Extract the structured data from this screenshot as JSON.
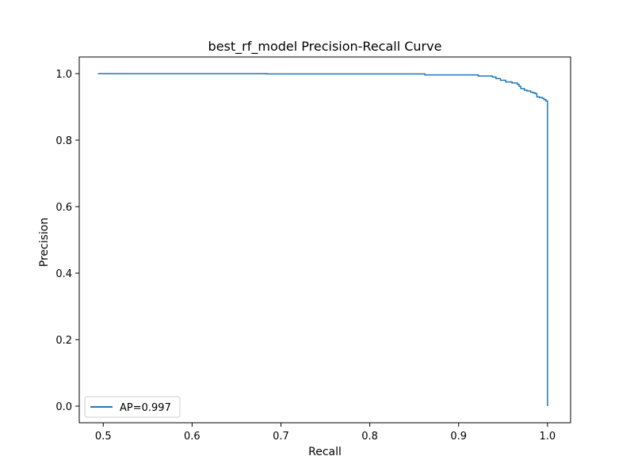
{
  "chart_data": {
    "type": "line",
    "title": "best_rf_model Precision-Recall Curve",
    "xlabel": "Recall",
    "ylabel": "Precision",
    "xlim": [
      0.473,
      1.026
    ],
    "ylim": [
      -0.05,
      1.05
    ],
    "xticks": [
      0.5,
      0.6,
      0.7,
      0.8,
      0.9,
      1.0
    ],
    "xtick_labels": [
      "0.5",
      "0.6",
      "0.7",
      "0.8",
      "0.9",
      "1.0"
    ],
    "yticks": [
      0.0,
      0.2,
      0.4,
      0.6,
      0.8,
      1.0
    ],
    "ytick_labels": [
      "0.0",
      "0.2",
      "0.4",
      "0.6",
      "0.8",
      "1.0"
    ],
    "grid": false,
    "legend_position": "lower-left",
    "step": true,
    "series": [
      {
        "name": "AP=0.997",
        "color": "#1f77b4",
        "x": [
          0.494,
          0.684,
          0.684,
          0.862,
          0.862,
          0.922,
          0.922,
          0.938,
          0.938,
          0.942,
          0.942,
          0.947,
          0.947,
          0.953,
          0.953,
          0.96,
          0.96,
          0.966,
          0.966,
          0.968,
          0.968,
          0.97,
          0.97,
          0.974,
          0.974,
          0.977,
          0.977,
          0.981,
          0.981,
          0.984,
          0.984,
          0.986,
          0.986,
          0.988,
          0.988,
          0.991,
          0.991,
          0.994,
          0.994,
          0.996,
          0.996,
          0.998,
          0.998,
          1.0,
          1.0
        ],
        "y": [
          1.0,
          1.0,
          0.999,
          0.999,
          0.996,
          0.996,
          0.993,
          0.993,
          0.99,
          0.99,
          0.985,
          0.985,
          0.98,
          0.98,
          0.975,
          0.975,
          0.972,
          0.972,
          0.968,
          0.968,
          0.962,
          0.962,
          0.955,
          0.955,
          0.95,
          0.95,
          0.948,
          0.948,
          0.944,
          0.944,
          0.942,
          0.942,
          0.94,
          0.94,
          0.93,
          0.93,
          0.928,
          0.928,
          0.926,
          0.926,
          0.922,
          0.922,
          0.918,
          0.918,
          0.0
        ]
      }
    ]
  }
}
